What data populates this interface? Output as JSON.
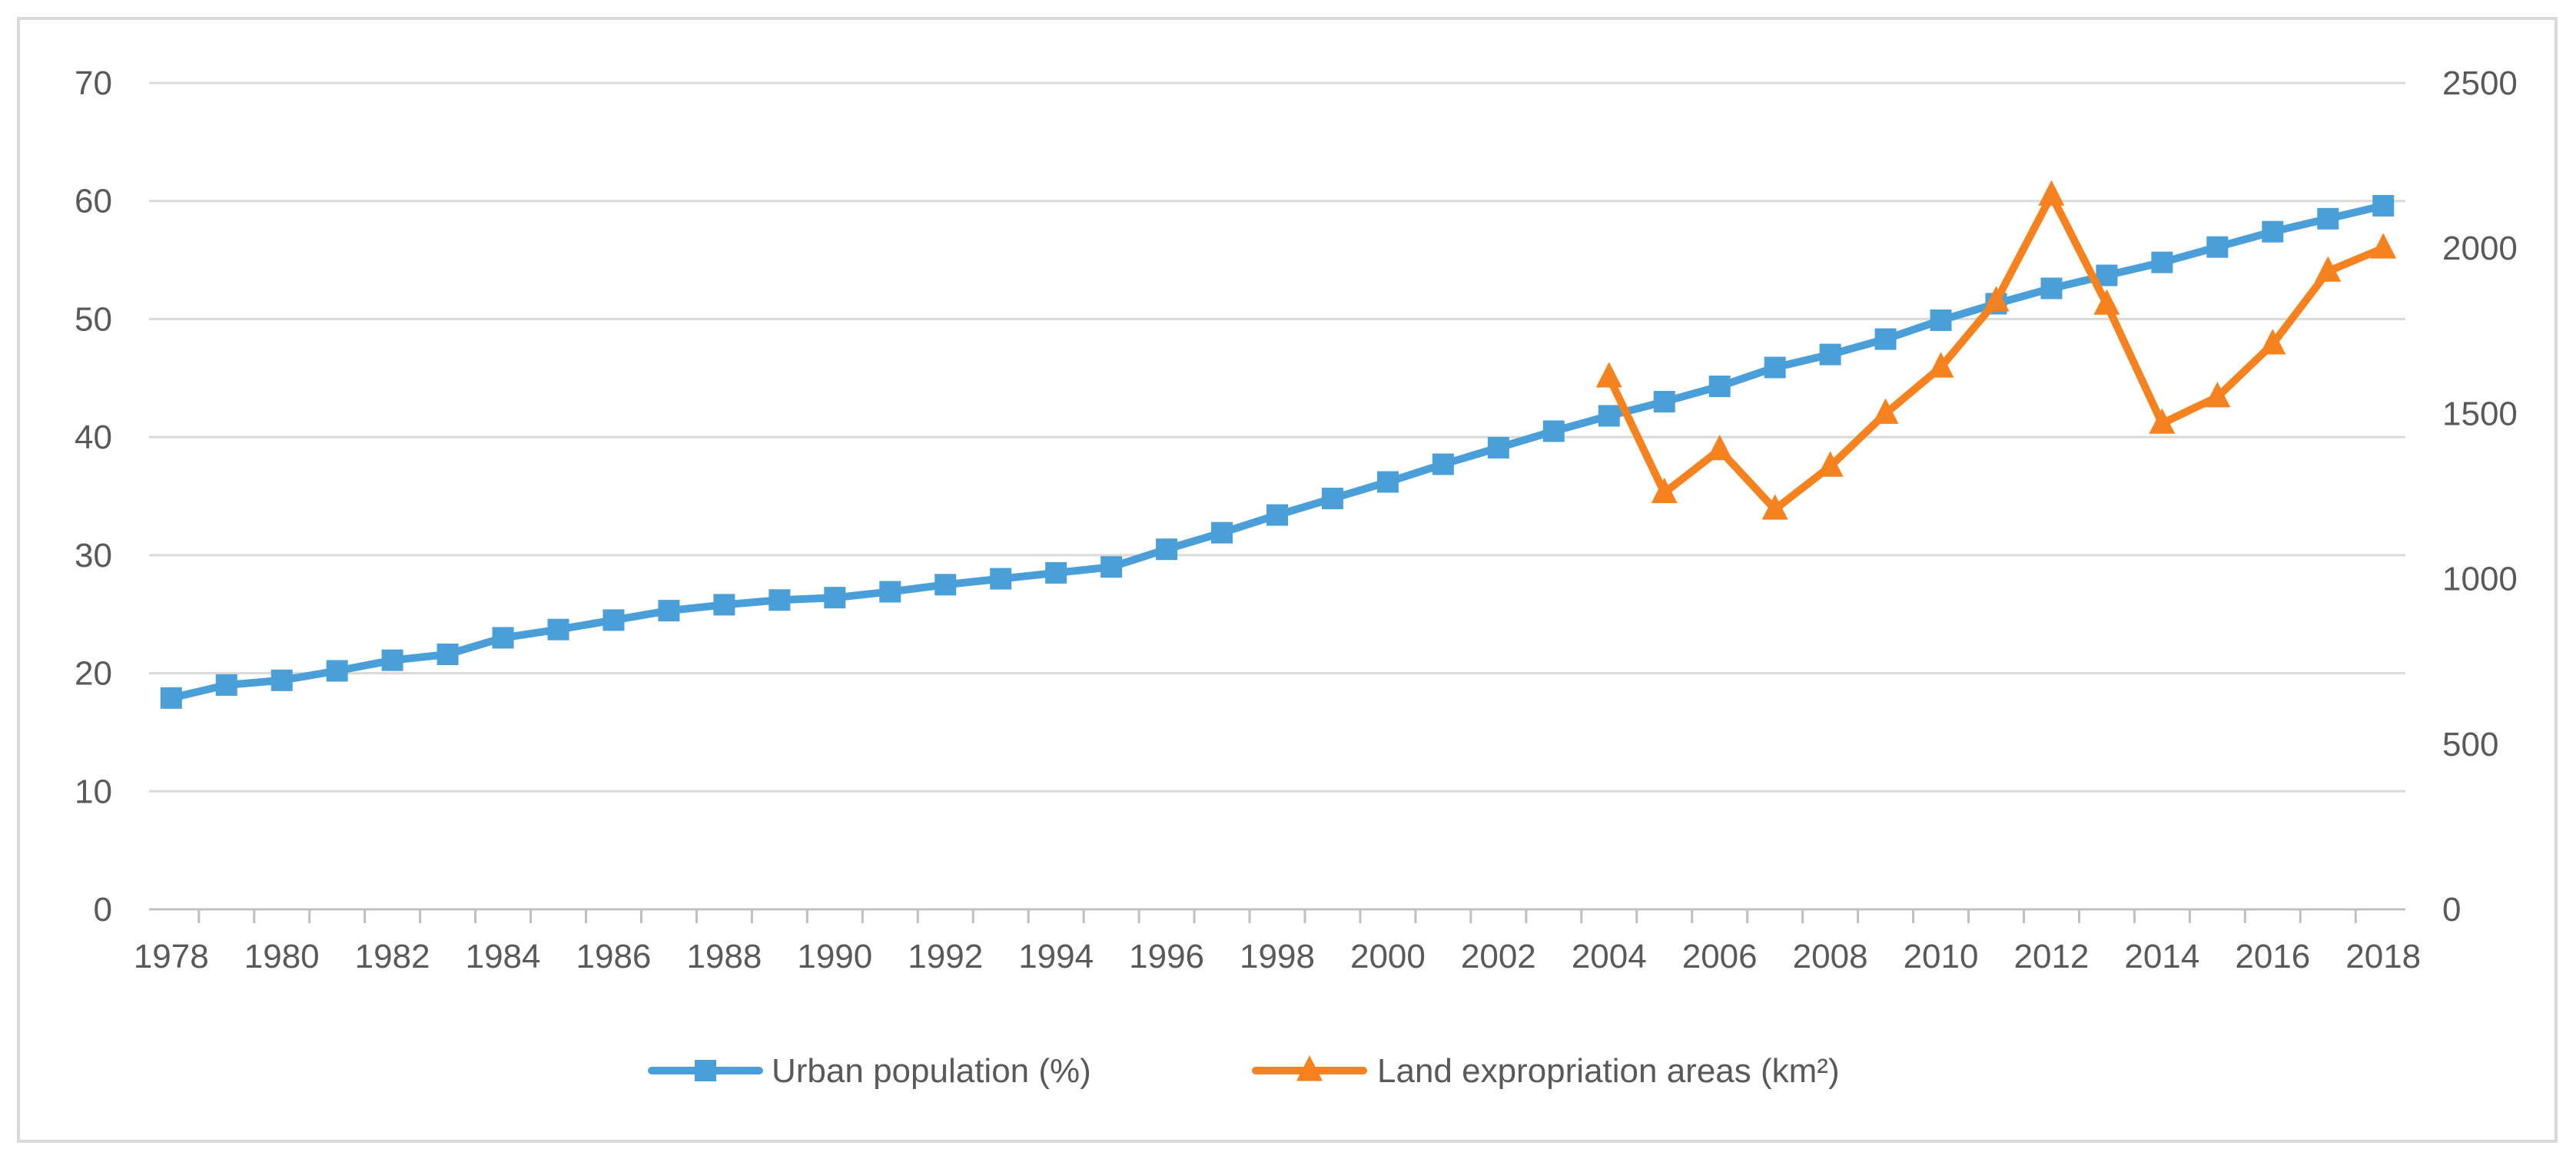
{
  "chart_data": {
    "type": "line",
    "title": "",
    "xlabel": "",
    "ylabel": "",
    "y2label": "",
    "grid": true,
    "legend_position": "bottom",
    "x": [
      1978,
      1979,
      1980,
      1981,
      1982,
      1983,
      1984,
      1985,
      1986,
      1987,
      1988,
      1989,
      1990,
      1991,
      1992,
      1993,
      1994,
      1995,
      1996,
      1997,
      1998,
      1999,
      2000,
      2001,
      2002,
      2003,
      2004,
      2005,
      2006,
      2007,
      2008,
      2009,
      2010,
      2011,
      2012,
      2013,
      2014,
      2015,
      2016,
      2017,
      2018
    ],
    "x_tick_labels": [
      "1978",
      "1980",
      "1982",
      "1984",
      "1986",
      "1988",
      "1990",
      "1992",
      "1994",
      "1996",
      "1998",
      "2000",
      "2002",
      "2004",
      "2006",
      "2008",
      "2010",
      "2012",
      "2014",
      "2016",
      "2018"
    ],
    "ylim": [
      0,
      70
    ],
    "y_ticks": [
      0,
      10,
      20,
      30,
      40,
      50,
      60,
      70
    ],
    "y2lim": [
      0,
      2500
    ],
    "y2_ticks": [
      0,
      500,
      1000,
      1500,
      2000,
      2500
    ],
    "series": [
      {
        "name": "Urban population (%)",
        "axis": "left",
        "color": "#4a9fd8",
        "marker": "square",
        "x": [
          1978,
          1979,
          1980,
          1981,
          1982,
          1983,
          1984,
          1985,
          1986,
          1987,
          1988,
          1989,
          1990,
          1991,
          1992,
          1993,
          1994,
          1995,
          1996,
          1997,
          1998,
          1999,
          2000,
          2001,
          2002,
          2003,
          2004,
          2005,
          2006,
          2007,
          2008,
          2009,
          2010,
          2011,
          2012,
          2013,
          2014,
          2015,
          2016,
          2017,
          2018
        ],
        "values": [
          17.9,
          19.0,
          19.4,
          20.2,
          21.1,
          21.6,
          23.0,
          23.7,
          24.5,
          25.3,
          25.8,
          26.2,
          26.4,
          26.9,
          27.5,
          28.0,
          28.5,
          29.0,
          30.5,
          31.9,
          33.4,
          34.8,
          36.2,
          37.7,
          39.1,
          40.5,
          41.8,
          43.0,
          44.3,
          45.9,
          47.0,
          48.3,
          49.9,
          51.3,
          52.6,
          53.7,
          54.8,
          56.1,
          57.4,
          58.5,
          59.6
        ]
      },
      {
        "name": "Land expropriation areas (km²)",
        "axis": "right",
        "color": "#f5821f",
        "marker": "triangle",
        "x": [
          2004,
          2005,
          2006,
          2007,
          2008,
          2009,
          2010,
          2011,
          2012,
          2013,
          2014,
          2015,
          2016,
          2017,
          2018
        ],
        "values": [
          1610,
          1260,
          1390,
          1210,
          1340,
          1500,
          1640,
          1840,
          2160,
          1830,
          1470,
          1550,
          1710,
          1930,
          2000
        ]
      }
    ]
  }
}
